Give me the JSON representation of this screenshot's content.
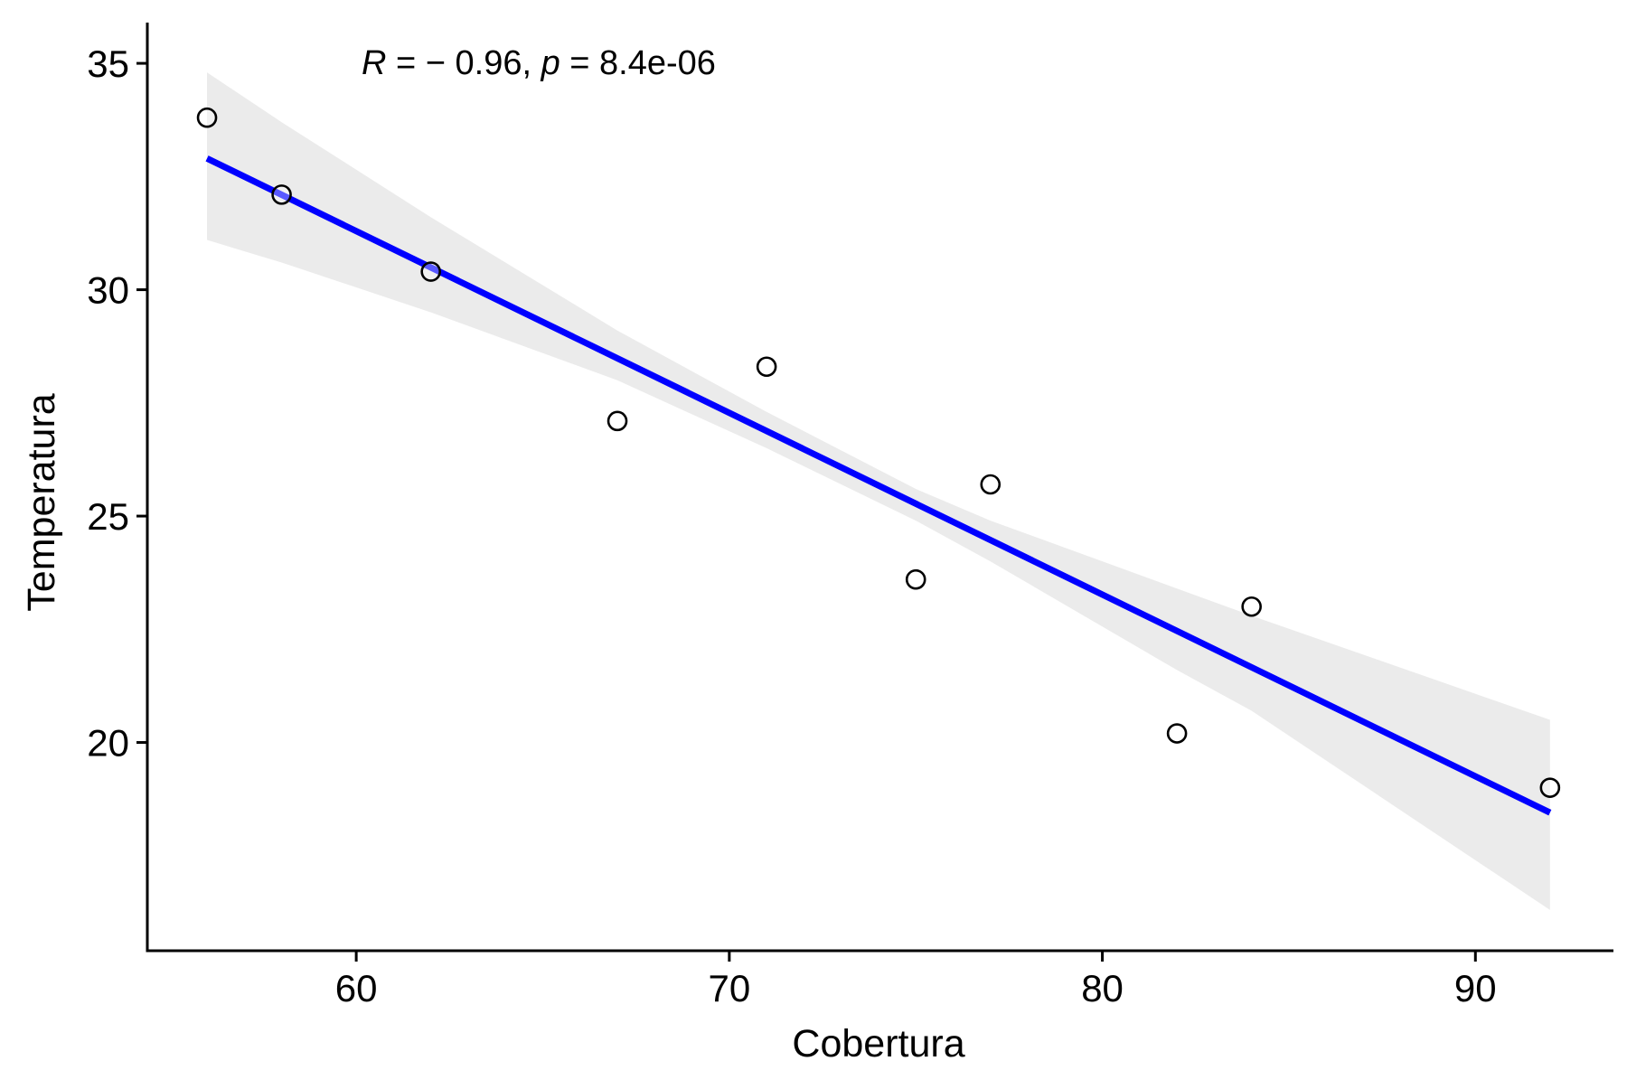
{
  "chart_data": {
    "type": "scatter",
    "title": "",
    "xlabel": "Cobertura",
    "ylabel": "Temperatura",
    "xlim": [
      54.4,
      93.7
    ],
    "ylim": [
      15.4,
      35.9
    ],
    "x_ticks": [
      60,
      70,
      80,
      90
    ],
    "x_tick_labels": [
      "60",
      "70",
      "80",
      "90"
    ],
    "y_ticks": [
      20,
      25,
      30,
      35
    ],
    "y_tick_labels": [
      "20",
      "25",
      "30",
      "35"
    ],
    "grid": false,
    "annotation": {
      "r_symbol": "R",
      "r_text": " = − 0.96, ",
      "p_symbol": "p",
      "p_text": " = 8.4e-06"
    },
    "series": [
      {
        "type": "scatter",
        "points": [
          {
            "x": 56,
            "y": 33.8
          },
          {
            "x": 58,
            "y": 32.1
          },
          {
            "x": 62,
            "y": 30.4
          },
          {
            "x": 67,
            "y": 27.1
          },
          {
            "x": 71,
            "y": 28.3
          },
          {
            "x": 75,
            "y": 23.6
          },
          {
            "x": 77,
            "y": 25.7
          },
          {
            "x": 82,
            "y": 20.2
          },
          {
            "x": 84,
            "y": 23.0
          },
          {
            "x": 92,
            "y": 19.0
          }
        ]
      }
    ],
    "regression": {
      "x": [
        56,
        92
      ],
      "y": [
        32.9,
        18.45
      ],
      "color": "#0000ff"
    },
    "confidence_band": {
      "x": [
        56,
        58,
        62,
        67,
        71,
        75,
        77,
        82,
        84,
        92
      ],
      "upper": [
        34.8,
        33.7,
        31.6,
        29.1,
        27.3,
        25.6,
        24.9,
        23.4,
        22.8,
        20.5
      ],
      "lower": [
        31.1,
        30.6,
        29.5,
        28.0,
        26.5,
        24.9,
        24.0,
        21.6,
        20.7,
        16.3
      ],
      "color": "#ebebeb"
    },
    "colors": {
      "point_stroke": "#000000",
      "point_fill": "#ffffff",
      "axis": "#000000"
    }
  }
}
